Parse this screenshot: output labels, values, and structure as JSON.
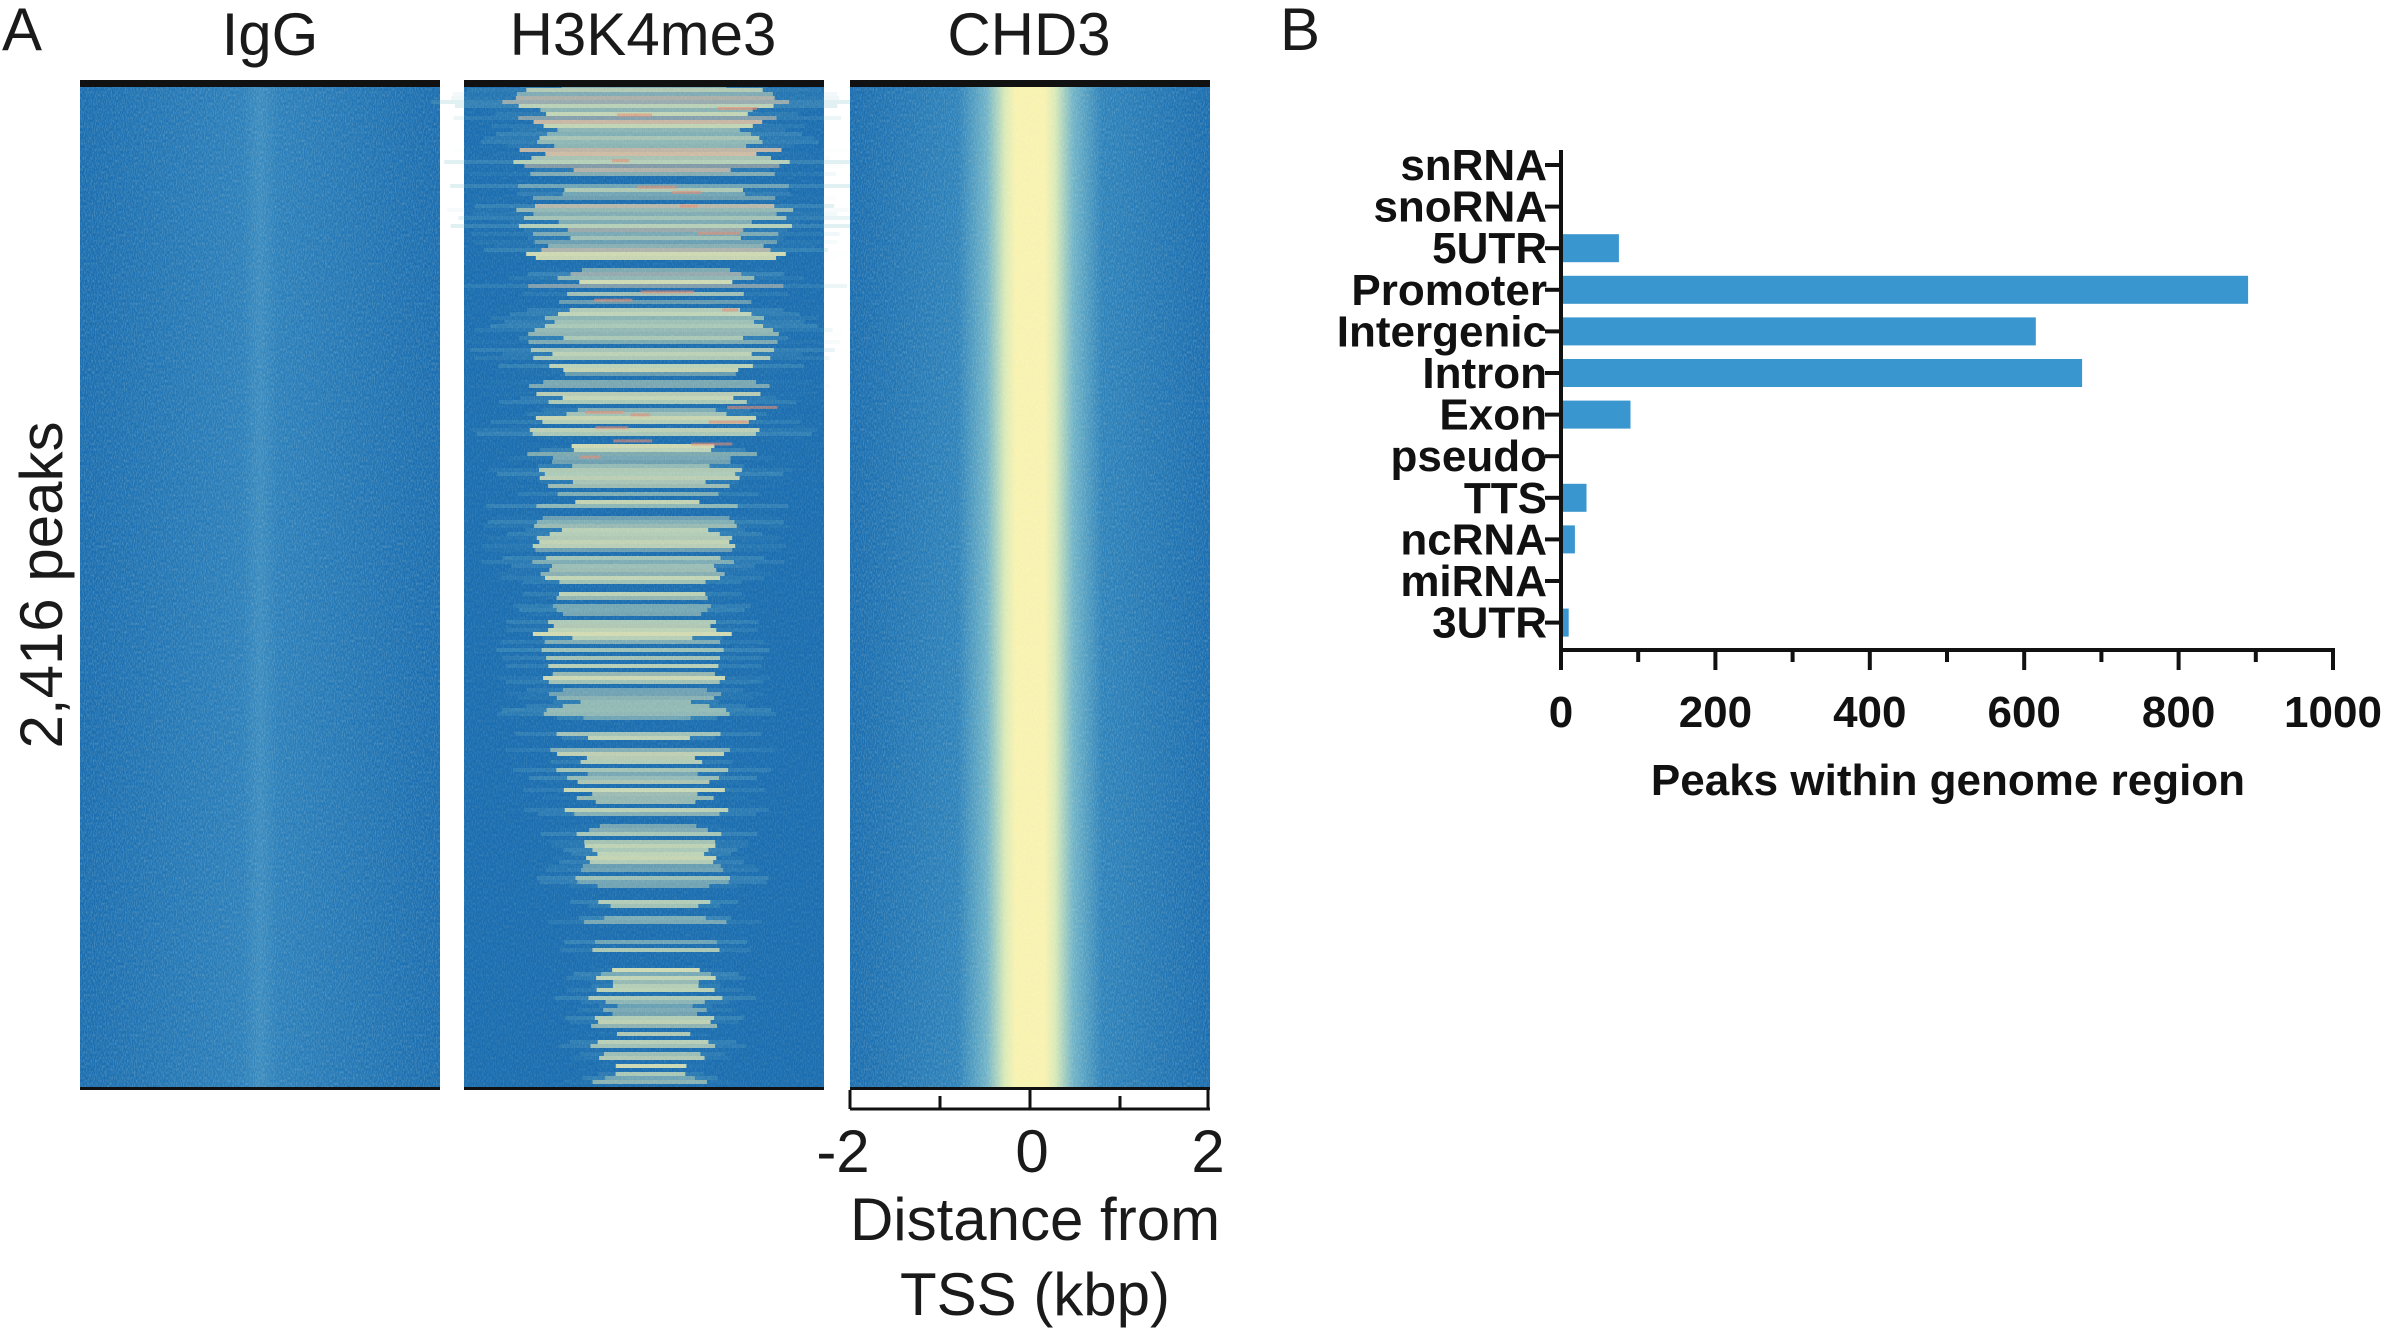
{
  "panel_a_label": "A",
  "panel_b_label": "B",
  "chart_data": [
    {
      "type": "heatmap",
      "panels": [
        "IgG",
        "H3K4me3",
        "CHD3"
      ],
      "ylabel": "2,416 peaks",
      "xlabel_line1": "Distance from",
      "xlabel_line2": "TSS (kbp)",
      "xticks": [
        "-2",
        "0",
        "2"
      ],
      "xlim": [
        -2,
        2
      ],
      "rows": 2416,
      "colors": {
        "low": "#1a6fb0",
        "mid": "#f8f2b0",
        "high": "#e88a70"
      }
    },
    {
      "type": "bar",
      "orientation": "horizontal",
      "categories": [
        "snRNA",
        "snoRNA",
        "5UTR",
        "Promoter",
        "Intergenic",
        "Intron",
        "Exon",
        "pseudo",
        "TTS",
        "ncRNA",
        "miRNA",
        "3UTR"
      ],
      "values": [
        0,
        0,
        75,
        890,
        615,
        675,
        90,
        0,
        33,
        18,
        0,
        10
      ],
      "xlabel": "Peaks within genome region",
      "xticks": [
        "0",
        "200",
        "400",
        "600",
        "800",
        "1000"
      ],
      "xlim": [
        0,
        1000
      ],
      "bar_color": "#3a96cf"
    }
  ]
}
